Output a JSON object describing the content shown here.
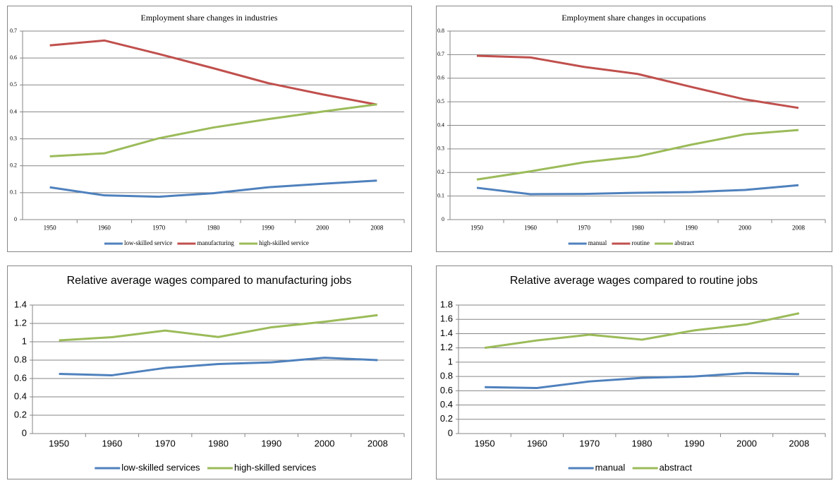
{
  "chart_data": [
    {
      "type": "line",
      "title": "Employment share changes in industries",
      "categories": [
        "1950",
        "1960",
        "1970",
        "1980",
        "1990",
        "2000",
        "2008"
      ],
      "ylim": [
        0,
        0.7
      ],
      "yticks": [
        0,
        0.1,
        0.2,
        0.3,
        0.4,
        0.5,
        0.6,
        0.7
      ],
      "grid": true,
      "legend": "bottom",
      "series": [
        {
          "name": "low-skilled service",
          "color": "#4f81bd",
          "values": [
            0.12,
            0.09,
            0.085,
            0.098,
            0.12,
            0.133,
            0.145
          ]
        },
        {
          "name": "manufacturing",
          "color": "#c0504d",
          "values": [
            0.647,
            0.665,
            0.615,
            0.562,
            0.507,
            0.465,
            0.427
          ]
        },
        {
          "name": "high-skilled service",
          "color": "#9bbb59",
          "values": [
            0.235,
            0.246,
            0.302,
            0.342,
            0.373,
            0.401,
            0.428
          ]
        }
      ]
    },
    {
      "type": "line",
      "title": "Employment share changes in occupations",
      "categories": [
        "1950",
        "1960",
        "1970",
        "1980",
        "1990",
        "2000",
        "2008"
      ],
      "ylim": [
        0,
        0.8
      ],
      "yticks": [
        0,
        0.1,
        0.2,
        0.3,
        0.4,
        0.5,
        0.6,
        0.7,
        0.8
      ],
      "grid": true,
      "legend": "bottom",
      "series": [
        {
          "name": "manual",
          "color": "#4f81bd",
          "values": [
            0.135,
            0.108,
            0.109,
            0.114,
            0.117,
            0.126,
            0.146
          ]
        },
        {
          "name": "routine",
          "color": "#c0504d",
          "values": [
            0.695,
            0.688,
            0.648,
            0.618,
            0.563,
            0.51,
            0.474
          ]
        },
        {
          "name": "abstract",
          "color": "#9bbb59",
          "values": [
            0.17,
            0.205,
            0.243,
            0.268,
            0.318,
            0.362,
            0.38
          ]
        }
      ]
    },
    {
      "type": "line",
      "title": "Relative average wages compared to manufacturing jobs",
      "categories": [
        "1950",
        "1960",
        "1970",
        "1980",
        "1990",
        "2000",
        "2008"
      ],
      "ylim": [
        0,
        1.4
      ],
      "yticks": [
        0,
        0.2,
        0.4,
        0.6,
        0.8,
        1,
        1.2,
        1.4
      ],
      "grid": true,
      "legend": "bottom",
      "series": [
        {
          "name": "low-skilled services",
          "color": "#4f81bd",
          "values": [
            0.65,
            0.635,
            0.715,
            0.758,
            0.776,
            0.826,
            0.8
          ]
        },
        {
          "name": "high-skilled services",
          "color": "#9bbb59",
          "values": [
            1.015,
            1.05,
            1.122,
            1.052,
            1.158,
            1.218,
            1.29
          ]
        }
      ]
    },
    {
      "type": "line",
      "title": "Relative average wages compared to routine jobs",
      "categories": [
        "1950",
        "1960",
        "1970",
        "1980",
        "1990",
        "2000",
        "2008"
      ],
      "ylim": [
        0,
        1.8
      ],
      "yticks": [
        0,
        0.2,
        0.4,
        0.6,
        0.8,
        1,
        1.2,
        1.4,
        1.6,
        1.8
      ],
      "grid": true,
      "legend": "bottom",
      "series": [
        {
          "name": "manual",
          "color": "#4f81bd",
          "values": [
            0.65,
            0.638,
            0.73,
            0.78,
            0.8,
            0.848,
            0.832
          ]
        },
        {
          "name": "abstract",
          "color": "#9bbb59",
          "values": [
            1.2,
            1.305,
            1.385,
            1.315,
            1.445,
            1.53,
            1.685
          ]
        }
      ]
    }
  ]
}
